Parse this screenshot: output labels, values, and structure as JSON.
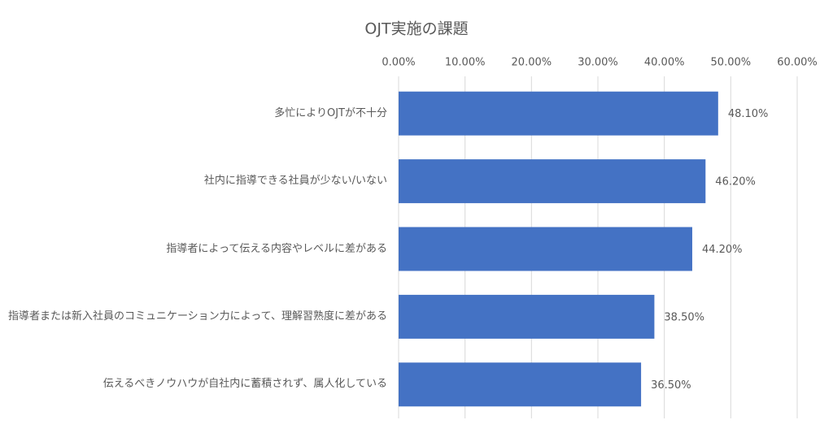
{
  "chart_data": {
    "type": "bar",
    "orientation": "horizontal",
    "title": "OJT実施の課題",
    "categories": [
      "多忙によりOJTが不十分",
      "社内に指導できる社員が少ない/いない",
      "指導者によって伝える内容やレベルに差がある",
      "指導者または新入社員のコミュニケーション力によって、理解習熟度に差がある",
      "伝えるべきノウハウが自社内に蓄積されず、属人化している"
    ],
    "values": [
      48.1,
      46.2,
      44.2,
      38.5,
      36.5
    ],
    "value_labels": [
      "48.10%",
      "46.20%",
      "44.20%",
      "38.50%",
      "36.50%"
    ],
    "color": "#4472c4",
    "xlim": [
      0,
      60
    ],
    "xticks": [
      {
        "value": 0,
        "label": "0.00%"
      },
      {
        "value": 10,
        "label": "10.00%"
      },
      {
        "value": 20,
        "label": "20.00%"
      },
      {
        "value": 30,
        "label": "30.00%"
      },
      {
        "value": 40,
        "label": "40.00%"
      },
      {
        "value": 50,
        "label": "50.00%"
      },
      {
        "value": 60,
        "label": "60.00%"
      }
    ],
    "grid": true
  }
}
